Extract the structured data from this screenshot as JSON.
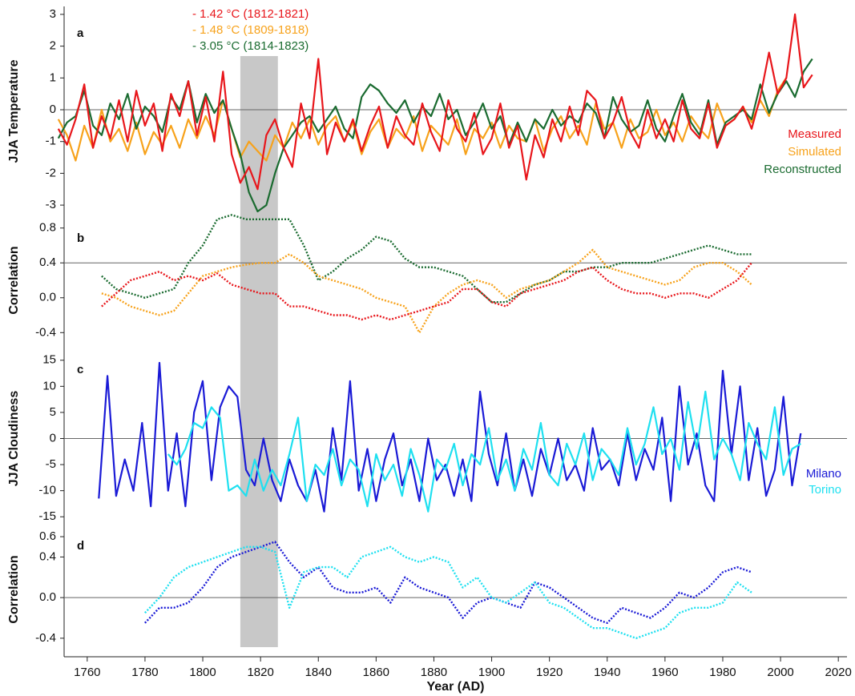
{
  "shaded_span": {
    "from": 1813,
    "to": 1826,
    "color": "#c8c8c8"
  },
  "chart_data": [
    {
      "type": "line",
      "label": "a",
      "ylabel": "JJA Temperature",
      "line_style": "solid",
      "legend": "lower right",
      "ylim": [
        -3.3,
        3.2
      ],
      "yticks": [
        -3,
        -2,
        -1,
        0,
        1,
        2,
        3
      ],
      "xlim": [
        1752,
        2023
      ],
      "reference_line": 0,
      "annotations": [
        {
          "text": "- 1.42 °C (1812-1821)",
          "color": "#e8161b"
        },
        {
          "text": "- 1.48 °C (1809-1818)",
          "color": "#f7a21b"
        },
        {
          "text": "- 3.05 °C (1814-1823)",
          "color": "#1a6b30"
        }
      ],
      "x": [
        1750,
        1753,
        1756,
        1759,
        1762,
        1765,
        1768,
        1771,
        1774,
        1777,
        1780,
        1783,
        1786,
        1789,
        1792,
        1795,
        1798,
        1801,
        1804,
        1807,
        1810,
        1813,
        1816,
        1819,
        1822,
        1825,
        1828,
        1831,
        1834,
        1837,
        1840,
        1843,
        1846,
        1849,
        1852,
        1855,
        1858,
        1861,
        1864,
        1867,
        1870,
        1873,
        1876,
        1879,
        1882,
        1885,
        1888,
        1891,
        1894,
        1897,
        1900,
        1903,
        1906,
        1909,
        1912,
        1915,
        1918,
        1921,
        1924,
        1927,
        1930,
        1933,
        1936,
        1939,
        1942,
        1945,
        1948,
        1951,
        1954,
        1957,
        1960,
        1963,
        1966,
        1969,
        1972,
        1975,
        1978,
        1981,
        1984,
        1987,
        1990,
        1993,
        1996,
        1999,
        2002,
        2005,
        2008,
        2011
      ],
      "series": [
        {
          "name": "Simulated",
          "color": "#f7a21b",
          "values": [
            -0.3,
            -0.8,
            -1.6,
            -0.5,
            -1.2,
            0.0,
            -1.0,
            -0.6,
            -1.3,
            -0.4,
            -1.4,
            -0.7,
            -1.1,
            -0.5,
            -1.2,
            -0.3,
            -0.9,
            -0.2,
            -0.8,
            0.3,
            -0.6,
            -1.5,
            -1.0,
            -1.3,
            -1.6,
            -0.8,
            -1.2,
            -0.4,
            -0.9,
            -0.3,
            -1.1,
            -0.5,
            -0.2,
            -1.0,
            -0.4,
            -1.4,
            -0.7,
            -0.3,
            -1.2,
            -0.6,
            -0.9,
            -0.2,
            -1.3,
            -0.5,
            -0.8,
            -1.1,
            -0.3,
            -1.4,
            -0.6,
            -0.9,
            -0.4,
            -1.2,
            -0.5,
            -0.9,
            -1.0,
            -0.3,
            -1.3,
            -0.6,
            -0.2,
            -0.9,
            -0.5,
            -1.1,
            0.2,
            -0.6,
            -0.4,
            -1.2,
            -0.3,
            -0.9,
            -0.7,
            0.0,
            -0.8,
            -0.4,
            -1.0,
            -0.2,
            -0.6,
            -0.9,
            0.2,
            -0.5,
            -0.3,
            0.1,
            -0.4,
            0.3,
            -0.2,
            0.6,
            1.0,
            null,
            null,
            null
          ]
        },
        {
          "name": "Reconstructed",
          "color": "#1a6b30",
          "values": [
            -0.9,
            -0.4,
            -0.2,
            0.6,
            -0.5,
            -0.8,
            0.2,
            -0.3,
            0.5,
            -0.6,
            0.1,
            -0.2,
            -0.7,
            0.4,
            0.0,
            0.9,
            -0.4,
            0.5,
            -0.1,
            0.3,
            -0.6,
            -1.4,
            -2.6,
            -3.2,
            -3.0,
            -2.0,
            -1.2,
            -0.8,
            -0.4,
            -0.2,
            -0.7,
            -0.3,
            0.1,
            -0.6,
            -0.9,
            0.4,
            0.8,
            0.6,
            0.2,
            -0.1,
            0.3,
            -0.4,
            0.1,
            -0.2,
            0.5,
            -0.3,
            0.0,
            -0.8,
            -0.4,
            0.2,
            -0.6,
            -0.2,
            -1.1,
            -0.4,
            -1.0,
            -0.3,
            -0.6,
            0.0,
            -0.5,
            -0.2,
            -0.4,
            0.2,
            -0.1,
            -0.9,
            0.4,
            -0.3,
            -0.7,
            -0.5,
            0.3,
            -0.6,
            -1.0,
            -0.2,
            0.5,
            -0.4,
            -0.8,
            0.3,
            -1.1,
            -0.4,
            -0.2,
            0.0,
            -0.3,
            0.8,
            -0.1,
            0.5,
            0.9,
            0.4,
            1.2,
            1.6
          ]
        },
        {
          "name": "Measured",
          "color": "#e8161b",
          "values": [
            -0.6,
            -1.1,
            -0.3,
            0.8,
            -1.2,
            -0.2,
            -0.9,
            0.3,
            -1.0,
            0.6,
            -0.5,
            0.2,
            -1.3,
            0.5,
            -0.2,
            0.9,
            -0.8,
            0.4,
            -1.0,
            1.2,
            -1.4,
            -2.3,
            -1.8,
            -2.5,
            -0.8,
            -0.3,
            -1.2,
            -1.8,
            0.2,
            -0.9,
            1.6,
            -1.4,
            -0.4,
            -1.0,
            -0.3,
            -1.3,
            -0.5,
            0.1,
            -1.2,
            -0.2,
            -0.8,
            -1.1,
            0.2,
            -0.7,
            -1.3,
            0.3,
            -0.6,
            -1.0,
            -0.1,
            -1.4,
            -0.9,
            0.2,
            -1.2,
            -0.5,
            -2.2,
            -0.8,
            -1.5,
            -0.3,
            -1.0,
            0.1,
            -0.8,
            0.6,
            0.3,
            -0.9,
            -0.4,
            0.4,
            -0.7,
            -1.2,
            0.0,
            -0.9,
            -0.3,
            -1.0,
            0.3,
            -0.6,
            -0.9,
            0.2,
            -1.2,
            -0.5,
            -0.3,
            0.1,
            -0.6,
            0.4,
            1.8,
            0.5,
            1.0,
            3.0,
            0.7,
            1.1
          ]
        }
      ]
    },
    {
      "type": "line",
      "label": "b",
      "ylabel": "Correlation",
      "line_style": "dotted",
      "ylim": [
        -0.48,
        0.88
      ],
      "yticks": [
        -0.4,
        {
          "value": 0,
          "label": "0.0"
        },
        0.4,
        0.8
      ],
      "xlim": [
        1752,
        2023
      ],
      "reference_line": 0.4,
      "x": [
        1765,
        1770,
        1775,
        1780,
        1785,
        1790,
        1795,
        1800,
        1805,
        1810,
        1815,
        1820,
        1825,
        1830,
        1835,
        1840,
        1845,
        1850,
        1855,
        1860,
        1865,
        1870,
        1875,
        1880,
        1885,
        1890,
        1895,
        1900,
        1905,
        1910,
        1915,
        1920,
        1925,
        1930,
        1935,
        1940,
        1945,
        1950,
        1955,
        1960,
        1965,
        1970,
        1975,
        1980,
        1985,
        1990
      ],
      "series": [
        {
          "name": "Reconstructed",
          "color": "#1a6b30",
          "values": [
            0.25,
            0.1,
            0.05,
            0.0,
            0.05,
            0.1,
            0.4,
            0.6,
            0.9,
            0.95,
            0.9,
            0.9,
            0.9,
            0.9,
            0.6,
            0.2,
            0.3,
            0.45,
            0.55,
            0.7,
            0.65,
            0.45,
            0.35,
            0.35,
            0.3,
            0.25,
            0.1,
            -0.05,
            -0.05,
            0.05,
            0.15,
            0.2,
            0.3,
            0.3,
            0.35,
            0.35,
            0.4,
            0.4,
            0.4,
            0.45,
            0.5,
            0.55,
            0.6,
            0.55,
            0.5,
            0.5
          ]
        },
        {
          "name": "Simulated",
          "color": "#f7a21b",
          "values": [
            0.05,
            0.0,
            -0.1,
            -0.15,
            -0.2,
            -0.15,
            0.05,
            0.25,
            0.3,
            0.35,
            0.38,
            0.4,
            0.4,
            0.5,
            0.4,
            0.25,
            0.2,
            0.15,
            0.1,
            0.0,
            -0.05,
            -0.1,
            -0.4,
            -0.1,
            0.05,
            0.15,
            0.2,
            0.15,
            0.0,
            0.1,
            0.15,
            0.2,
            0.3,
            0.4,
            0.55,
            0.35,
            0.3,
            0.25,
            0.2,
            0.15,
            0.2,
            0.35,
            0.4,
            0.4,
            0.3,
            0.15
          ]
        },
        {
          "name": "Measured",
          "color": "#e8161b",
          "values": [
            -0.1,
            0.05,
            0.2,
            0.25,
            0.3,
            0.2,
            0.25,
            0.2,
            0.28,
            0.15,
            0.1,
            0.05,
            0.05,
            -0.1,
            -0.1,
            -0.15,
            -0.2,
            -0.2,
            -0.25,
            -0.2,
            -0.25,
            -0.2,
            -0.15,
            -0.1,
            -0.05,
            0.1,
            0.1,
            -0.05,
            -0.1,
            0.05,
            0.1,
            0.15,
            0.2,
            0.3,
            0.35,
            0.2,
            0.1,
            0.05,
            0.05,
            0.0,
            0.05,
            0.05,
            0.0,
            0.1,
            0.2,
            0.4
          ]
        }
      ]
    },
    {
      "type": "line",
      "label": "c",
      "ylabel": "JJA Cloudiness",
      "line_style": "solid",
      "legend": "lower right",
      "ylim": [
        -16.5,
        16.5
      ],
      "yticks": [
        -15,
        -10,
        -5,
        0,
        5,
        10,
        15
      ],
      "xlim": [
        1752,
        2023
      ],
      "reference_line": 0,
      "x": [
        1764,
        1767,
        1770,
        1773,
        1776,
        1779,
        1782,
        1785,
        1788,
        1791,
        1794,
        1797,
        1800,
        1803,
        1806,
        1809,
        1812,
        1815,
        1818,
        1821,
        1824,
        1827,
        1830,
        1833,
        1836,
        1839,
        1842,
        1845,
        1848,
        1851,
        1854,
        1857,
        1860,
        1863,
        1866,
        1869,
        1872,
        1875,
        1878,
        1881,
        1884,
        1887,
        1890,
        1893,
        1896,
        1899,
        1902,
        1905,
        1908,
        1911,
        1914,
        1917,
        1920,
        1923,
        1926,
        1929,
        1932,
        1935,
        1938,
        1941,
        1944,
        1947,
        1950,
        1953,
        1956,
        1959,
        1962,
        1965,
        1968,
        1971,
        1974,
        1977,
        1980,
        1983,
        1986,
        1989,
        1992,
        1995,
        1998,
        2001,
        2004,
        2007
      ],
      "series": [
        {
          "name": "Milano",
          "color": "#1a1ad6",
          "values": [
            -11.5,
            12,
            -11,
            -4,
            -10,
            3,
            -13,
            14.5,
            -10,
            1,
            -13,
            5,
            11,
            -8,
            6,
            10,
            8,
            -6,
            -9,
            0,
            -8,
            -12,
            -4,
            -9,
            -12,
            -6,
            -14,
            2,
            -8,
            11,
            -10,
            -2,
            -12,
            -4,
            1,
            -9,
            -4,
            -12,
            0,
            -8,
            -5,
            -11,
            -4,
            -12,
            9,
            -3,
            -9,
            1,
            -10,
            -4,
            -11,
            -2,
            -7,
            0,
            -8,
            -5,
            -10,
            2,
            -6,
            -4,
            -9,
            1,
            -8,
            -2,
            -6,
            4,
            -12,
            10,
            -5,
            1,
            -9,
            -12,
            13,
            -3,
            10,
            -8,
            2,
            -11,
            -6,
            8,
            -9,
            1
          ]
        },
        {
          "name": "Torino",
          "color": "#1ee0f0",
          "values": [
            null,
            null,
            null,
            null,
            null,
            null,
            null,
            null,
            -3,
            -5,
            -2,
            3,
            2,
            6,
            4,
            -10,
            -9,
            -11,
            -4,
            -10,
            -6,
            -9,
            -3,
            4,
            -12,
            -5,
            -7,
            -2,
            -9,
            -4,
            -6,
            -13,
            -3,
            -8,
            -5,
            -11,
            -2,
            -7,
            -14,
            -4,
            -6,
            -1,
            -9,
            -3,
            -5,
            2,
            -8,
            -4,
            -10,
            -2,
            -6,
            3,
            -7,
            -9,
            -1,
            -5,
            1,
            -8,
            -2,
            -4,
            -7,
            2,
            -5,
            -1,
            6,
            -3,
            0,
            -6,
            7,
            -2,
            9,
            -4,
            0,
            -3,
            -8,
            3,
            -1,
            -4,
            6,
            -7,
            -2,
            -1
          ]
        }
      ]
    },
    {
      "type": "line",
      "label": "d",
      "ylabel": "Correlation",
      "line_style": "dotted",
      "xlabel": "Year (AD)",
      "ylim": [
        -0.48,
        0.64
      ],
      "yticks": [
        -0.4,
        {
          "value": 0,
          "label": "0.0"
        },
        0.4,
        0.6
      ],
      "xlim": [
        1752,
        2023
      ],
      "reference_line": 0,
      "xticks": [
        1760,
        1780,
        1800,
        1820,
        1840,
        1860,
        1880,
        1900,
        1920,
        1940,
        1960,
        1980,
        2000,
        2020
      ],
      "x": [
        1780,
        1785,
        1790,
        1795,
        1800,
        1805,
        1810,
        1815,
        1820,
        1825,
        1830,
        1835,
        1840,
        1845,
        1850,
        1855,
        1860,
        1865,
        1870,
        1875,
        1880,
        1885,
        1890,
        1895,
        1900,
        1905,
        1910,
        1915,
        1920,
        1925,
        1930,
        1935,
        1940,
        1945,
        1950,
        1955,
        1960,
        1965,
        1970,
        1975,
        1980,
        1985,
        1990
      ],
      "series": [
        {
          "name": "Milano",
          "color": "#1a1ad6",
          "values": [
            -0.25,
            -0.1,
            -0.1,
            -0.05,
            0.1,
            0.3,
            0.4,
            0.45,
            0.5,
            0.55,
            0.35,
            0.2,
            0.3,
            0.1,
            0.05,
            0.05,
            0.1,
            -0.05,
            0.2,
            0.1,
            0.05,
            0.0,
            -0.2,
            -0.05,
            0.0,
            -0.05,
            -0.1,
            0.15,
            0.1,
            0.0,
            -0.1,
            -0.2,
            -0.25,
            -0.1,
            -0.15,
            -0.2,
            -0.1,
            0.05,
            0.0,
            0.1,
            0.25,
            0.3,
            0.25
          ]
        },
        {
          "name": "Torino",
          "color": "#1ee0f0",
          "values": [
            -0.15,
            0.0,
            0.2,
            0.3,
            0.35,
            0.4,
            0.45,
            0.5,
            0.5,
            0.45,
            -0.1,
            0.25,
            0.3,
            0.3,
            0.2,
            0.4,
            0.45,
            0.5,
            0.4,
            0.35,
            0.4,
            0.35,
            0.1,
            0.2,
            0.0,
            -0.05,
            0.05,
            0.15,
            -0.05,
            -0.1,
            -0.2,
            -0.3,
            -0.3,
            -0.35,
            -0.4,
            -0.35,
            -0.3,
            -0.15,
            -0.1,
            -0.1,
            -0.05,
            0.15,
            0.05
          ]
        }
      ]
    }
  ]
}
